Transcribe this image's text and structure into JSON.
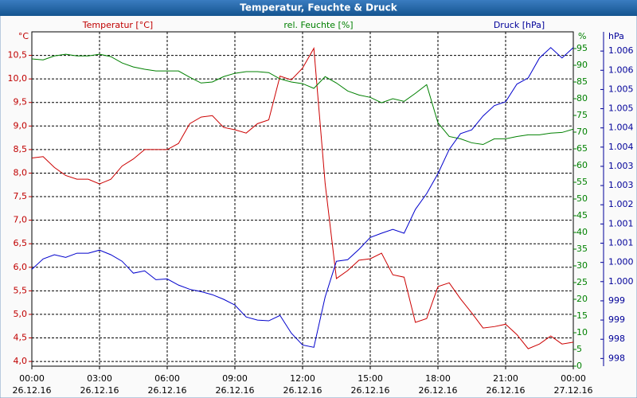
{
  "chart_data": {
    "type": "line",
    "title": "Temperatur, Feuchte & Druck",
    "x": [
      0,
      0.5,
      1,
      1.5,
      2,
      2.5,
      3,
      3.5,
      4,
      4.5,
      5,
      5.5,
      6,
      6.5,
      7,
      7.5,
      8,
      8.5,
      9,
      9.5,
      10,
      10.5,
      11,
      11.5,
      12,
      12.5,
      13,
      13.5,
      14,
      14.5,
      15,
      15.5,
      16,
      16.5,
      17,
      17.5,
      18,
      18.5,
      19,
      19.5,
      20,
      20.5,
      21,
      21.5,
      22,
      22.5,
      23,
      23.5,
      24
    ],
    "xlim": [
      0,
      24
    ],
    "xticks": [
      {
        "value": 0,
        "label": "00:00"
      },
      {
        "value": 3,
        "label": "03:00"
      },
      {
        "value": 6,
        "label": "06:00"
      },
      {
        "value": 9,
        "label": "09:00"
      },
      {
        "value": 12,
        "label": "12:00"
      },
      {
        "value": 15,
        "label": "15:00"
      },
      {
        "value": 18,
        "label": "18:00"
      },
      {
        "value": 21,
        "label": "21:00"
      },
      {
        "value": 24,
        "label": "00:00"
      }
    ],
    "xtick_dates": [
      "26.12.16",
      "26.12.16",
      "26.12.16",
      "26.12.16",
      "26.12.16",
      "26.12.16",
      "26.12.16",
      "26.12.16",
      "27.12.16"
    ],
    "y_label": "Temperatur [°C]",
    "y_unit": "°C",
    "ylim": [
      3.9,
      11.0
    ],
    "yticks": [
      {
        "value": 4.0,
        "label": "4,0"
      },
      {
        "value": 4.5,
        "label": "4,5"
      },
      {
        "value": 5.0,
        "label": "5,0"
      },
      {
        "value": 5.5,
        "label": "5,5"
      },
      {
        "value": 6.0,
        "label": "6,0"
      },
      {
        "value": 6.5,
        "label": "6,5"
      },
      {
        "value": 7.0,
        "label": "7,0"
      },
      {
        "value": 7.5,
        "label": "7,5"
      },
      {
        "value": 8.0,
        "label": "8,0"
      },
      {
        "value": 8.5,
        "label": "8,5"
      },
      {
        "value": 9.0,
        "label": "9,0"
      },
      {
        "value": 9.5,
        "label": "9,5"
      },
      {
        "value": 10.0,
        "label": "10,0"
      },
      {
        "value": 10.5,
        "label": "10,5"
      }
    ],
    "y2_label": "rel. Feuchte [%]",
    "y2_unit": "%",
    "y2lim": [
      0,
      100
    ],
    "y2ticks": [
      0,
      5,
      10,
      15,
      20,
      25,
      30,
      35,
      40,
      45,
      50,
      55,
      60,
      65,
      70,
      75,
      80,
      85,
      90,
      95
    ],
    "y3_label": "Druck [hPa]",
    "y3_unit": "hPa",
    "y3lim": [
      997.8,
      1006.5
    ],
    "y3ticks": [
      {
        "value": 998.0,
        "label": "998"
      },
      {
        "value": 998.5,
        "label": "998"
      },
      {
        "value": 999.0,
        "label": "999"
      },
      {
        "value": 999.5,
        "label": "999"
      },
      {
        "value": 1000.0,
        "label": "1.000"
      },
      {
        "value": 1000.5,
        "label": "1.000"
      },
      {
        "value": 1001.0,
        "label": "1.001"
      },
      {
        "value": 1001.5,
        "label": "1.001"
      },
      {
        "value": 1002.0,
        "label": "1.002"
      },
      {
        "value": 1002.5,
        "label": "1.003"
      },
      {
        "value": 1003.0,
        "label": "1.003"
      },
      {
        "value": 1003.5,
        "label": "1.004"
      },
      {
        "value": 1004.0,
        "label": "1.004"
      },
      {
        "value": 1004.5,
        "label": "1.005"
      },
      {
        "value": 1005.0,
        "label": "1.005"
      },
      {
        "value": 1005.5,
        "label": "1.006"
      },
      {
        "value": 1006.0,
        "label": "1.006"
      }
    ],
    "grid": true,
    "series": [
      {
        "name": "Temperatur",
        "color": "#cc0000",
        "axis": "y",
        "values": [
          8.32,
          8.35,
          8.12,
          7.95,
          7.87,
          7.87,
          7.77,
          7.87,
          8.15,
          8.3,
          8.5,
          8.5,
          8.5,
          8.63,
          9.05,
          9.19,
          9.22,
          8.97,
          8.92,
          8.85,
          9.05,
          9.13,
          10.06,
          9.98,
          10.23,
          10.65,
          7.78,
          5.76,
          5.93,
          6.15,
          6.18,
          6.3,
          5.84,
          5.79,
          4.83,
          4.91,
          5.59,
          5.67,
          5.33,
          5.03,
          4.71,
          4.74,
          4.79,
          4.57,
          4.27,
          4.37,
          4.54,
          4.37,
          4.41
        ]
      },
      {
        "name": "rel. Feuchte",
        "color": "#008000",
        "axis": "y2",
        "values": [
          91.9,
          91.6,
          92.8,
          93.3,
          92.8,
          92.8,
          93.3,
          92.6,
          90.7,
          89.5,
          88.8,
          88.3,
          88.3,
          88.3,
          86.4,
          84.7,
          85,
          86.6,
          87.6,
          88.1,
          88.1,
          87.8,
          85.9,
          85,
          84.5,
          83.1,
          86.6,
          84.7,
          82.3,
          81.1,
          80.4,
          78.8,
          80,
          79.2,
          81.6,
          84.2,
          72.8,
          68.7,
          68,
          66.8,
          66.3,
          68,
          68,
          68.7,
          69.2,
          69.2,
          69.7,
          69.9,
          70.9
        ]
      },
      {
        "name": "Druck",
        "color": "#0000cc",
        "axis": "y3",
        "values": [
          1000.32,
          1000.59,
          1000.7,
          1000.63,
          1000.74,
          1000.74,
          1000.82,
          1000.7,
          1000.53,
          1000.22,
          1000.28,
          1000.05,
          1000.07,
          999.91,
          999.8,
          999.74,
          999.66,
          999.54,
          999.39,
          999.08,
          999.0,
          998.98,
          999.12,
          998.66,
          998.35,
          998.29,
          999.6,
          1000.53,
          1000.57,
          1000.84,
          1001.15,
          1001.26,
          1001.36,
          1001.26,
          1001.88,
          1002.29,
          1002.81,
          1003.44,
          1003.85,
          1003.95,
          1004.31,
          1004.58,
          1004.68,
          1005.14,
          1005.3,
          1005.82,
          1006.09,
          1005.82,
          1006.09
        ]
      }
    ]
  }
}
